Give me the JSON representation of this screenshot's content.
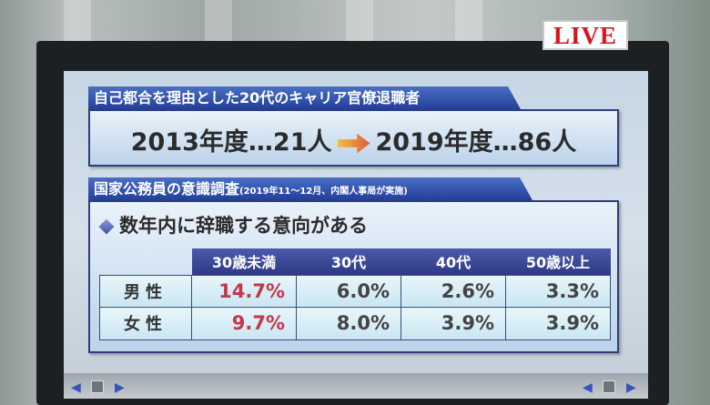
{
  "live_badge": "LIVE",
  "section1": {
    "title": "自己都合を理由とした20代のキャリア官僚退職者",
    "from": "2013年度…21人",
    "to": "2019年度…86人"
  },
  "section2": {
    "title": "国家公務員の意識調査",
    "note": "(2019年11〜12月、内閣人事局が実施)",
    "subheading": "数年内に辞職する意向がある",
    "table": {
      "columns": [
        "30歳未満",
        "30代",
        "40代",
        "50歳以上"
      ],
      "rows": [
        {
          "label": "男性",
          "values": [
            "14.7%",
            "6.0%",
            "2.6%",
            "3.3%"
          ]
        },
        {
          "label": "女性",
          "values": [
            "9.7%",
            "8.0%",
            "3.9%",
            "3.9%"
          ]
        }
      ]
    }
  },
  "colors": {
    "header_blue": "#23409a",
    "highlight_red": "#c3384a",
    "live_red": "#d8141c"
  },
  "icons": [
    "arrow-right-icon",
    "diamond-bullet-icon",
    "prev-arrow-icon",
    "next-arrow-icon"
  ]
}
